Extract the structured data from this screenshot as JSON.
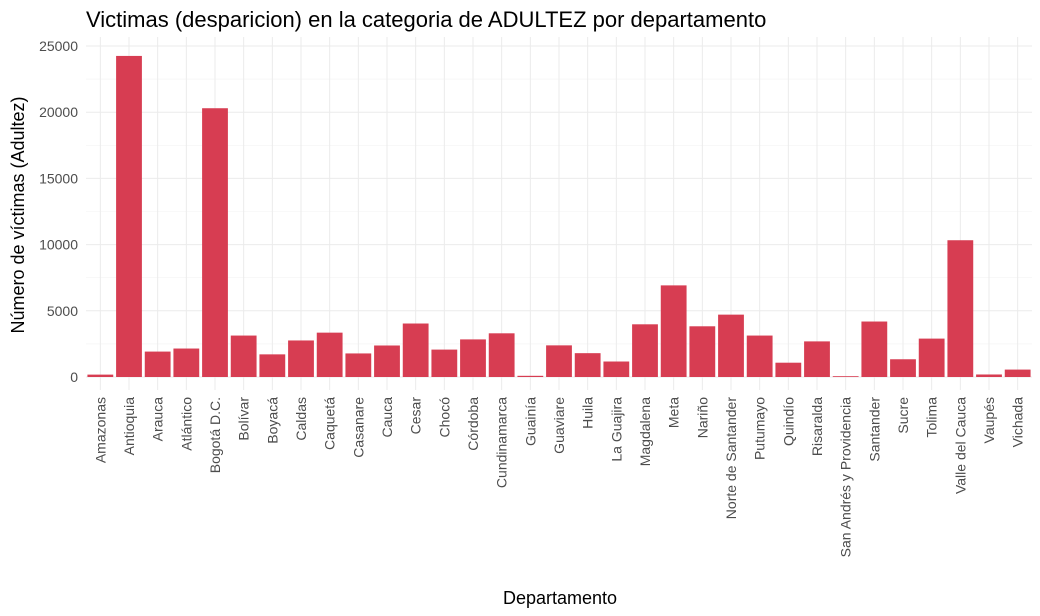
{
  "chart_data": {
    "type": "bar",
    "title": "Victimas (desparicion) en la categoria de ADULTEZ por departamento",
    "xlabel": "Departamento",
    "ylabel": "Número de víctimas (Adultez)",
    "ylim": [
      0,
      25000
    ],
    "yticks": [
      0,
      5000,
      10000,
      15000,
      20000,
      25000
    ],
    "bar_color": "#d73d52",
    "grid": true,
    "categories": [
      "Amazonas",
      "Antioquia",
      "Arauca",
      "Atlántico",
      "Bogotá D.C.",
      "Bolívar",
      "Boyacá",
      "Caldas",
      "Caquetá",
      "Casanare",
      "Cauca",
      "Cesar",
      "Chocó",
      "Córdoba",
      "Cundinamarca",
      "Guainía",
      "Guaviare",
      "Huila",
      "La Guajira",
      "Magdalena",
      "Meta",
      "Nariño",
      "Norte de Santander",
      "Putumayo",
      "Quindío",
      "Risaralda",
      "San Andrés y Providencia",
      "Santander",
      "Sucre",
      "Tolima",
      "Valle del Cauca",
      "Vaupés",
      "Vichada"
    ],
    "values": [
      180,
      24250,
      1920,
      2150,
      20300,
      3130,
      1710,
      2760,
      3350,
      1780,
      2380,
      4040,
      2070,
      2840,
      3300,
      90,
      2390,
      1800,
      1170,
      3980,
      6920,
      3830,
      4710,
      3130,
      1080,
      2690,
      60,
      4190,
      1340,
      2900,
      10330,
      190,
      560
    ]
  }
}
